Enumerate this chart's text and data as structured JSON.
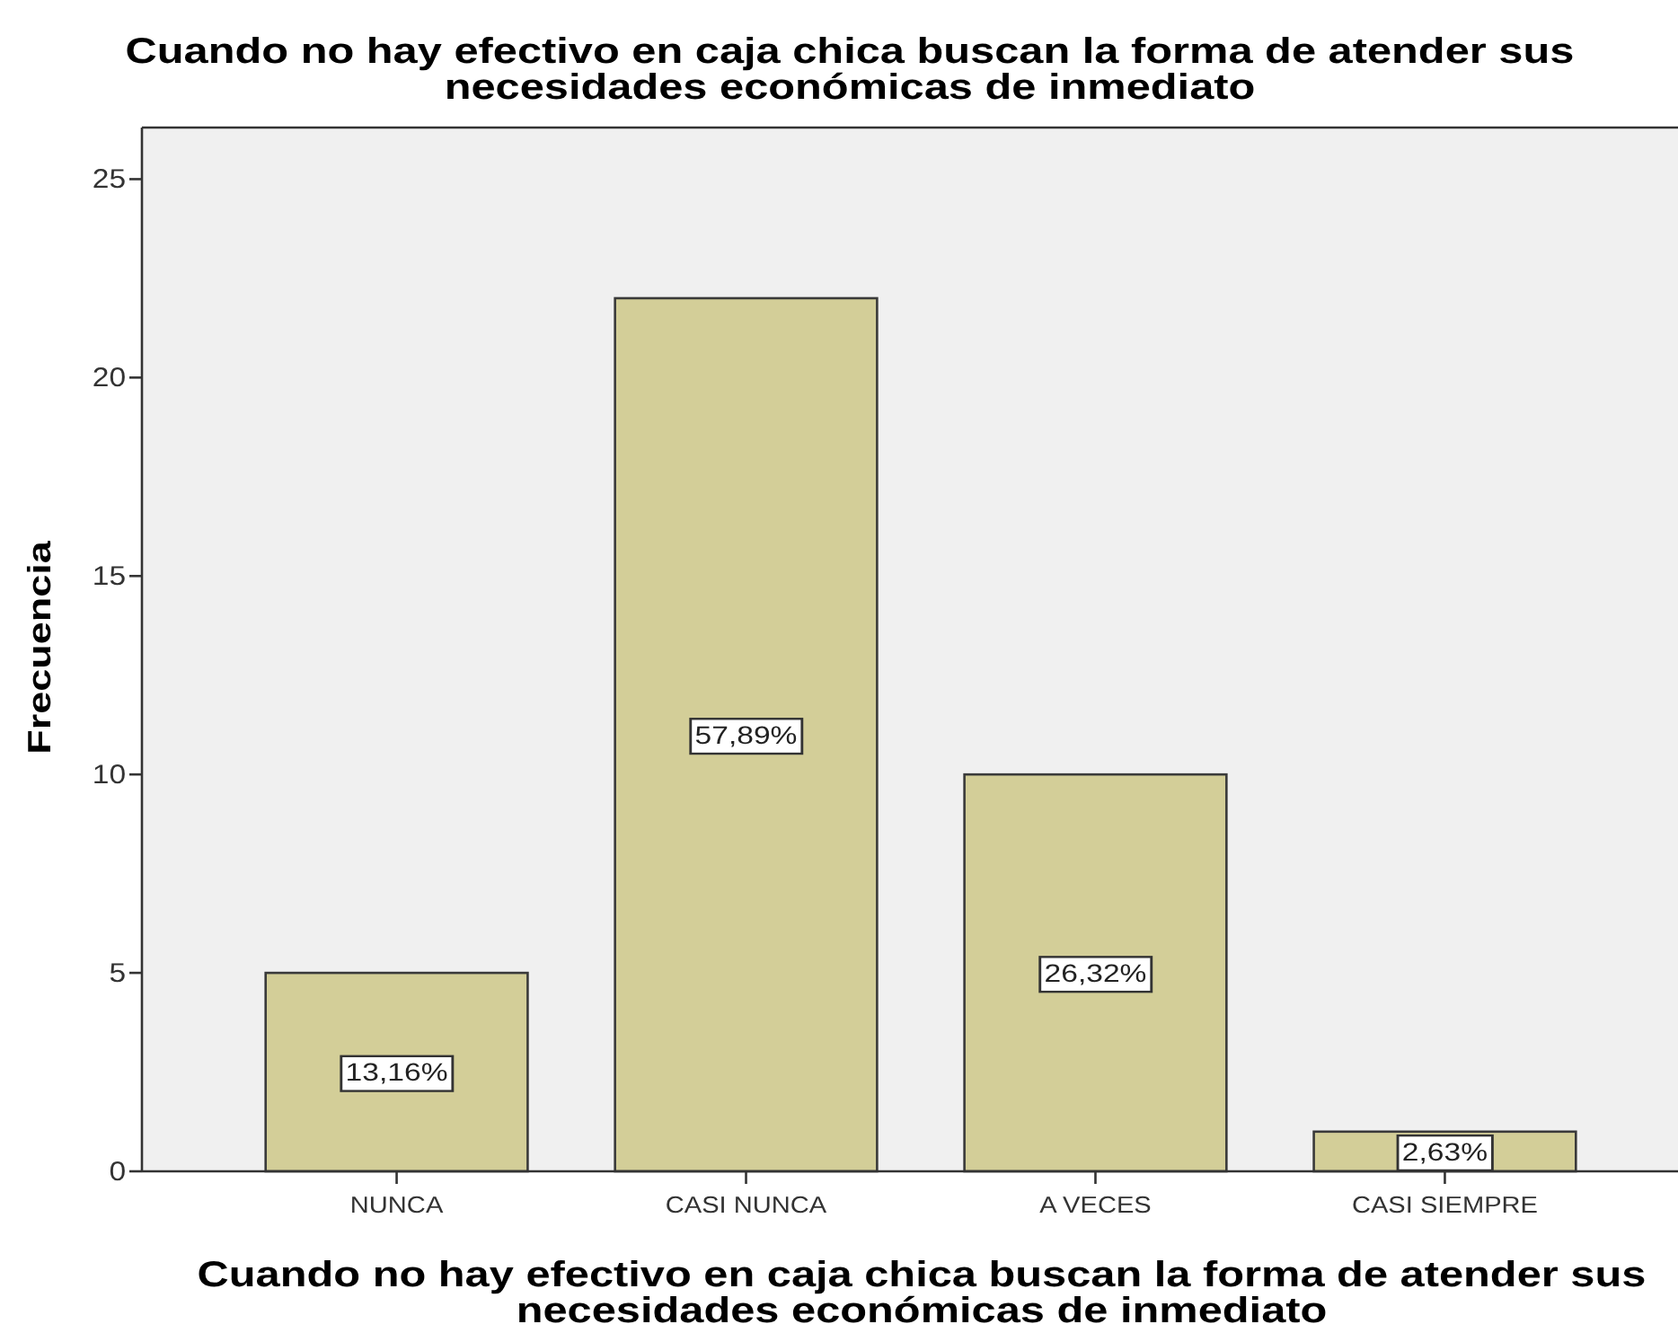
{
  "chart_data": {
    "type": "bar",
    "title": "Cuando no hay efectivo en caja chica buscan la forma de atender sus necesidades económicas de inmediato",
    "xlabel": "Cuando no hay efectivo en caja chica buscan la forma de atender sus necesidades económicas de inmediato",
    "ylabel": "Frecuencia",
    "categories": [
      "NUNCA",
      "CASI NUNCA",
      "A VECES",
      "CASI SIEMPRE"
    ],
    "values": [
      5,
      22,
      10,
      1
    ],
    "color": "#d3ce98",
    "ylim": [
      0,
      26.3
    ],
    "yticks": [
      0,
      5,
      10,
      15,
      20,
      25
    ],
    "annotations": [
      "13,16%",
      "57,89%",
      "26,32%",
      "2,63%"
    ]
  }
}
